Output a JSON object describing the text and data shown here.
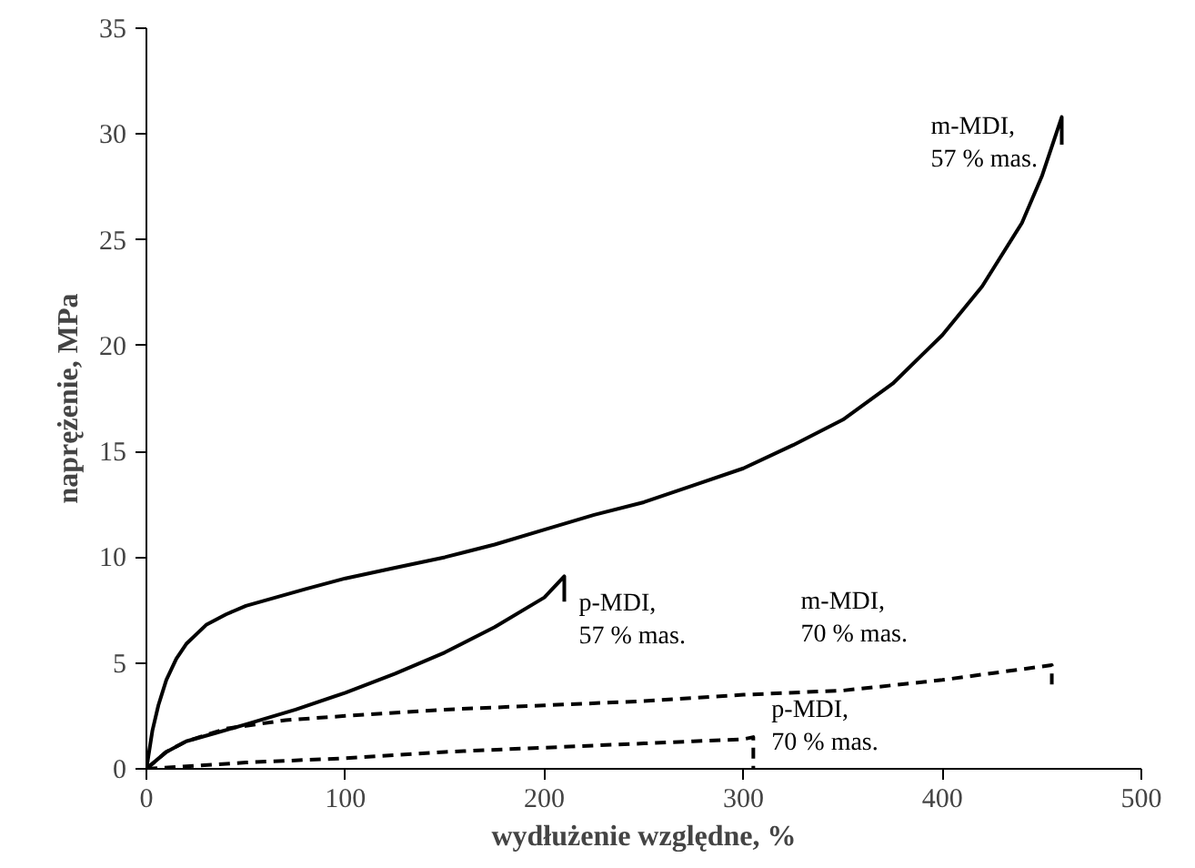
{
  "chart_data": {
    "type": "line",
    "xlabel": "wydłużenie względne, %",
    "ylabel": "naprężenie, MPa",
    "xlim": [
      0,
      500
    ],
    "ylim": [
      0,
      35
    ],
    "xticks": [
      0,
      100,
      200,
      300,
      400,
      500
    ],
    "yticks": [
      0,
      5,
      10,
      15,
      20,
      25,
      30,
      35
    ],
    "grid": false,
    "marker": "none",
    "series": [
      {
        "name": "m-MDI,\n57 % mas.",
        "color": "#000000",
        "line_style": "solid",
        "x": [
          0,
          3,
          6,
          10,
          15,
          20,
          30,
          40,
          50,
          65,
          80,
          100,
          125,
          150,
          175,
          200,
          225,
          250,
          275,
          300,
          325,
          350,
          375,
          400,
          420,
          440,
          450,
          460,
          460
        ],
        "values": [
          0,
          1.8,
          3,
          4.2,
          5.2,
          5.9,
          6.8,
          7.3,
          7.7,
          8.1,
          8.5,
          9,
          9.5,
          10,
          10.6,
          11.3,
          12,
          12.6,
          13.4,
          14.2,
          15.3,
          16.5,
          18.2,
          20.5,
          22.8,
          25.8,
          28,
          30.8,
          29.5
        ]
      },
      {
        "name": "p-MDI,\n57 % mas.",
        "color": "#000000",
        "line_style": "solid",
        "x": [
          0,
          10,
          20,
          35,
          50,
          75,
          100,
          125,
          150,
          175,
          200,
          210,
          210
        ],
        "values": [
          0,
          0.8,
          1.3,
          1.7,
          2.1,
          2.8,
          3.6,
          4.5,
          5.5,
          6.7,
          8.1,
          9.1,
          7.9
        ]
      },
      {
        "name": "m-MDI,\n70 % mas.",
        "color": "#000000",
        "line_style": "dashed",
        "x": [
          0,
          10,
          20,
          40,
          70,
          100,
          150,
          200,
          250,
          300,
          350,
          400,
          455,
          455
        ],
        "values": [
          0,
          0.8,
          1.3,
          1.9,
          2.3,
          2.5,
          2.8,
          3.0,
          3.2,
          3.5,
          3.7,
          4.2,
          4.9,
          3.9
        ]
      },
      {
        "name": "p-MDI,\n70 % mas.",
        "color": "#000000",
        "line_style": "dashed",
        "x": [
          0,
          50,
          100,
          150,
          200,
          250,
          300,
          305,
          305
        ],
        "values": [
          0,
          0.3,
          0.5,
          0.8,
          1.0,
          1.2,
          1.4,
          1.5,
          0
        ]
      }
    ]
  }
}
